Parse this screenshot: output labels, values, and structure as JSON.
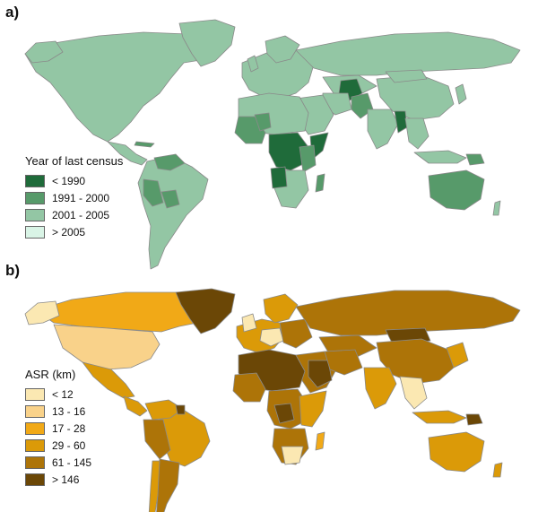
{
  "panels": [
    {
      "label": "a)",
      "legend_title": "Year of last census",
      "ocean_color": "#ffffff",
      "border_color": "#8a8a8a",
      "legend": [
        {
          "label": "< 1990",
          "color": "#1f6b3a"
        },
        {
          "label": "1991 - 2000",
          "color": "#579a6a"
        },
        {
          "label": "2001 - 2005",
          "color": "#93c6a4"
        },
        {
          "label": "> 2005",
          "color": "#d9f4e6"
        }
      ]
    },
    {
      "label": "b)",
      "legend_title": "ASR (km)",
      "ocean_color": "#ffffff",
      "border_color": "#8a8a8a",
      "legend": [
        {
          "label": "< 12",
          "color": "#fbe8b2"
        },
        {
          "label": "13 - 16",
          "color": "#f9d28a"
        },
        {
          "label": "17 - 28",
          "color": "#f1a917"
        },
        {
          "label": "29 - 60",
          "color": "#db9a08"
        },
        {
          "label": "61 - 145",
          "color": "#ad7408"
        },
        {
          "label": "> 146",
          "color": "#6b4706"
        }
      ]
    }
  ]
}
